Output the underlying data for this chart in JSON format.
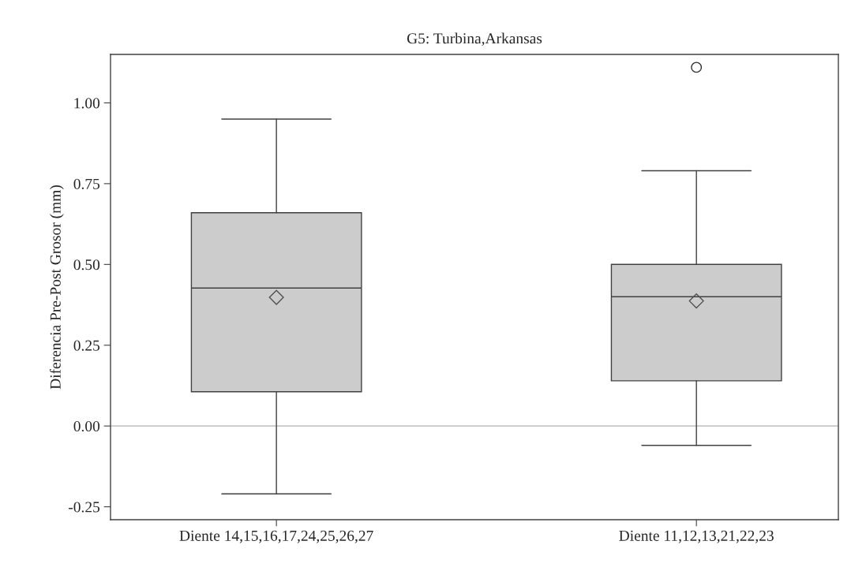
{
  "chart_data": {
    "type": "box",
    "title": "G5: Turbina,Arkansas",
    "ylabel": "Diferencia Pre-Post Grosor (mm)",
    "categories": [
      "Diente 14,15,16,17,24,25,26,27",
      "Diente 11,12,13,21,22,23"
    ],
    "boxes": [
      {
        "low": -0.21,
        "q1": 0.106,
        "median": 0.427,
        "q3": 0.66,
        "high": 0.95,
        "mean": 0.398
      },
      {
        "low": -0.06,
        "q1": 0.14,
        "median": 0.4,
        "q3": 0.5,
        "high": 0.79,
        "mean": 0.387,
        "outliers": [
          1.11
        ]
      }
    ],
    "color": "#cccccc",
    "ylim": [
      -0.29,
      1.15
    ],
    "yticks": [
      {
        "value": -0.25,
        "label": "-0.25"
      },
      {
        "value": 0,
        "label": "0.00"
      },
      {
        "value": 0.25,
        "label": "0.25"
      },
      {
        "value": 0.5,
        "label": "0.50"
      },
      {
        "value": 0.75,
        "label": "0.75"
      },
      {
        "value": 1,
        "label": "1.00"
      }
    ],
    "ref_lines": [
      {
        "axis": "y",
        "value": 0,
        "color": "#b0b0b0"
      }
    ],
    "grid": false
  }
}
